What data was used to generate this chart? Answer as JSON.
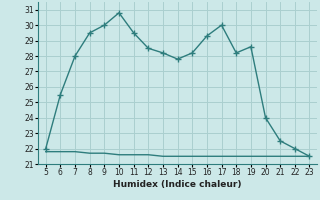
{
  "title": "",
  "xlabel": "Humidex (Indice chaleur)",
  "x": [
    5,
    6,
    7,
    8,
    9,
    10,
    11,
    12,
    13,
    14,
    15,
    16,
    17,
    18,
    19,
    20,
    21,
    22,
    23
  ],
  "y_main": [
    22.0,
    25.5,
    28.0,
    29.5,
    30.0,
    30.8,
    29.5,
    28.5,
    28.2,
    27.8,
    28.2,
    29.3,
    30.0,
    28.2,
    28.6,
    24.0,
    22.5,
    22.0,
    21.5
  ],
  "y_flat": [
    21.8,
    21.8,
    21.8,
    21.7,
    21.7,
    21.6,
    21.6,
    21.6,
    21.5,
    21.5,
    21.5,
    21.5,
    21.5,
    21.5,
    21.5,
    21.5,
    21.5,
    21.5,
    21.5
  ],
  "line_color": "#2e7d7d",
  "bg_color": "#cce8e8",
  "grid_color": "#aacfcf",
  "ylim": [
    21,
    31.5
  ],
  "xlim": [
    4.5,
    23.5
  ],
  "yticks": [
    21,
    22,
    23,
    24,
    25,
    26,
    27,
    28,
    29,
    30,
    31
  ],
  "xticks": [
    5,
    6,
    7,
    8,
    9,
    10,
    11,
    12,
    13,
    14,
    15,
    16,
    17,
    18,
    19,
    20,
    21,
    22,
    23
  ],
  "marker_style": "+",
  "marker_size": 4,
  "linewidth": 1.0,
  "tick_fontsize": 5.5,
  "xlabel_fontsize": 6.5
}
